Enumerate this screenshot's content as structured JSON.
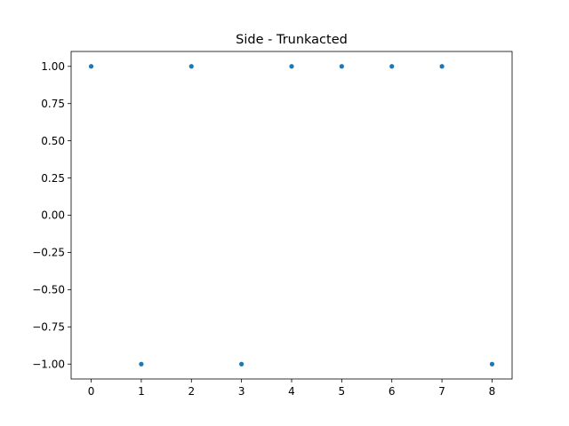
{
  "chart_data": {
    "type": "scatter",
    "title": "Side - Trunkacted",
    "xlabel": "",
    "ylabel": "",
    "xlim": [
      -0.4,
      8.4
    ],
    "ylim": [
      -1.1,
      1.1
    ],
    "xticks": [
      0,
      1,
      2,
      3,
      4,
      5,
      6,
      7,
      8
    ],
    "xtick_labels": [
      "0",
      "1",
      "2",
      "3",
      "4",
      "5",
      "6",
      "7",
      "8"
    ],
    "yticks": [
      -1.0,
      -0.75,
      -0.5,
      -0.25,
      0.0,
      0.25,
      0.5,
      0.75,
      1.0
    ],
    "ytick_labels": [
      "−1.00",
      "−0.75",
      "−0.50",
      "−0.25",
      "0.00",
      "0.25",
      "0.50",
      "0.75",
      "1.00"
    ],
    "grid": false,
    "marker_color": "#1f77b4",
    "series": [
      {
        "x": [
          0,
          1,
          2,
          3,
          4,
          5,
          6,
          7,
          8
        ],
        "y": [
          1,
          -1,
          1,
          -1,
          1,
          1,
          1,
          1,
          -1
        ]
      }
    ]
  }
}
